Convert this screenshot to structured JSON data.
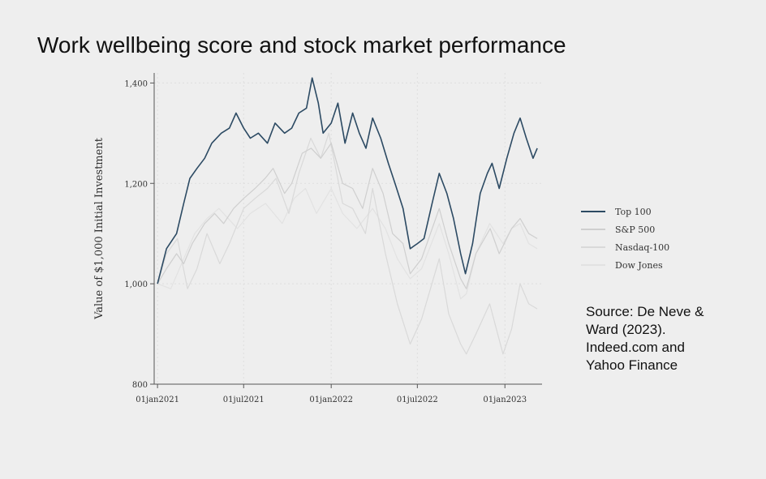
{
  "title": "Work wellbeing score and stock market performance",
  "source": {
    "lines": [
      "Source: De Neve &",
      "Ward (2023).",
      "Indeed.com and",
      "Yahoo Finance"
    ]
  },
  "chart_data": {
    "type": "line",
    "ylabel": "Value of $1,000 Initial Investment",
    "xlabel": "",
    "ylim": [
      800,
      1420
    ],
    "yticks": [
      800,
      1000,
      1200,
      1400
    ],
    "ytick_labels": [
      "800",
      "1,000",
      "1,200",
      "1,400"
    ],
    "xlim": [
      "2020-12-25",
      "2023-03-20"
    ],
    "xticks": [
      "2021-01-01",
      "2021-07-01",
      "2022-01-01",
      "2022-07-01",
      "2023-01-01"
    ],
    "xtick_labels": [
      "01jan2021",
      "01jul2021",
      "01jan2022",
      "01jul2022",
      "01jan2023"
    ],
    "grid": true,
    "legend_position": "right",
    "series": [
      {
        "name": "Top 100",
        "color": "#2c4a63",
        "points": [
          [
            "2021-01-01",
            1000
          ],
          [
            "2021-01-20",
            1070
          ],
          [
            "2021-02-10",
            1100
          ],
          [
            "2021-02-25",
            1160
          ],
          [
            "2021-03-10",
            1210
          ],
          [
            "2021-03-25",
            1230
          ],
          [
            "2021-04-10",
            1250
          ],
          [
            "2021-04-25",
            1280
          ],
          [
            "2021-05-15",
            1300
          ],
          [
            "2021-06-01",
            1310
          ],
          [
            "2021-06-15",
            1340
          ],
          [
            "2021-07-01",
            1310
          ],
          [
            "2021-07-15",
            1290
          ],
          [
            "2021-08-01",
            1300
          ],
          [
            "2021-08-20",
            1280
          ],
          [
            "2021-09-05",
            1320
          ],
          [
            "2021-09-25",
            1300
          ],
          [
            "2021-10-10",
            1310
          ],
          [
            "2021-10-25",
            1340
          ],
          [
            "2021-11-10",
            1350
          ],
          [
            "2021-11-22",
            1410
          ],
          [
            "2021-12-05",
            1360
          ],
          [
            "2021-12-15",
            1300
          ],
          [
            "2022-01-01",
            1320
          ],
          [
            "2022-01-15",
            1360
          ],
          [
            "2022-01-30",
            1280
          ],
          [
            "2022-02-15",
            1340
          ],
          [
            "2022-03-01",
            1300
          ],
          [
            "2022-03-15",
            1270
          ],
          [
            "2022-03-29",
            1330
          ],
          [
            "2022-04-15",
            1290
          ],
          [
            "2022-05-01",
            1240
          ],
          [
            "2022-05-15",
            1200
          ],
          [
            "2022-06-01",
            1150
          ],
          [
            "2022-06-16",
            1070
          ],
          [
            "2022-07-01",
            1080
          ],
          [
            "2022-07-15",
            1090
          ],
          [
            "2022-08-01",
            1160
          ],
          [
            "2022-08-16",
            1220
          ],
          [
            "2022-09-01",
            1180
          ],
          [
            "2022-09-15",
            1130
          ],
          [
            "2022-09-30",
            1060
          ],
          [
            "2022-10-10",
            1020
          ],
          [
            "2022-10-25",
            1080
          ],
          [
            "2022-11-10",
            1180
          ],
          [
            "2022-11-25",
            1220
          ],
          [
            "2022-12-05",
            1240
          ],
          [
            "2022-12-20",
            1190
          ],
          [
            "2023-01-05",
            1250
          ],
          [
            "2023-01-20",
            1300
          ],
          [
            "2023-02-02",
            1330
          ],
          [
            "2023-02-15",
            1290
          ],
          [
            "2023-03-01",
            1250
          ],
          [
            "2023-03-10",
            1270
          ]
        ]
      },
      {
        "name": "S&P 500",
        "color": "#cfcfcf",
        "points": [
          [
            "2021-01-01",
            1000
          ],
          [
            "2021-01-20",
            1030
          ],
          [
            "2021-02-10",
            1060
          ],
          [
            "2021-02-25",
            1040
          ],
          [
            "2021-03-15",
            1080
          ],
          [
            "2021-04-10",
            1120
          ],
          [
            "2021-05-01",
            1140
          ],
          [
            "2021-05-20",
            1120
          ],
          [
            "2021-06-10",
            1150
          ],
          [
            "2021-07-01",
            1170
          ],
          [
            "2021-07-25",
            1190
          ],
          [
            "2021-08-15",
            1210
          ],
          [
            "2021-09-01",
            1230
          ],
          [
            "2021-09-25",
            1180
          ],
          [
            "2021-10-10",
            1200
          ],
          [
            "2021-11-01",
            1260
          ],
          [
            "2021-11-20",
            1270
          ],
          [
            "2021-12-10",
            1250
          ],
          [
            "2022-01-01",
            1280
          ],
          [
            "2022-01-25",
            1200
          ],
          [
            "2022-02-15",
            1190
          ],
          [
            "2022-03-08",
            1150
          ],
          [
            "2022-03-29",
            1230
          ],
          [
            "2022-04-20",
            1180
          ],
          [
            "2022-05-10",
            1100
          ],
          [
            "2022-06-01",
            1080
          ],
          [
            "2022-06-16",
            1020
          ],
          [
            "2022-07-10",
            1050
          ],
          [
            "2022-08-16",
            1150
          ],
          [
            "2022-09-05",
            1080
          ],
          [
            "2022-09-30",
            1010
          ],
          [
            "2022-10-12",
            990
          ],
          [
            "2022-11-01",
            1060
          ],
          [
            "2022-12-01",
            1110
          ],
          [
            "2022-12-20",
            1060
          ],
          [
            "2023-01-15",
            1110
          ],
          [
            "2023-02-02",
            1130
          ],
          [
            "2023-02-20",
            1100
          ],
          [
            "2023-03-10",
            1090
          ]
        ]
      },
      {
        "name": "Nasdaq-100",
        "color": "#d9d9d9",
        "points": [
          [
            "2021-01-01",
            1000
          ],
          [
            "2021-01-20",
            1060
          ],
          [
            "2021-02-12",
            1090
          ],
          [
            "2021-03-05",
            990
          ],
          [
            "2021-03-25",
            1030
          ],
          [
            "2021-04-15",
            1100
          ],
          [
            "2021-05-12",
            1040
          ],
          [
            "2021-06-01",
            1080
          ],
          [
            "2021-07-01",
            1150
          ],
          [
            "2021-07-25",
            1170
          ],
          [
            "2021-08-20",
            1190
          ],
          [
            "2021-09-07",
            1210
          ],
          [
            "2021-10-04",
            1140
          ],
          [
            "2021-10-25",
            1220
          ],
          [
            "2021-11-19",
            1290
          ],
          [
            "2021-12-10",
            1250
          ],
          [
            "2021-12-27",
            1300
          ],
          [
            "2022-01-25",
            1160
          ],
          [
            "2022-02-15",
            1150
          ],
          [
            "2022-03-14",
            1100
          ],
          [
            "2022-03-29",
            1190
          ],
          [
            "2022-04-25",
            1060
          ],
          [
            "2022-05-20",
            960
          ],
          [
            "2022-06-16",
            880
          ],
          [
            "2022-07-10",
            930
          ],
          [
            "2022-08-16",
            1050
          ],
          [
            "2022-09-05",
            940
          ],
          [
            "2022-09-30",
            880
          ],
          [
            "2022-10-12",
            860
          ],
          [
            "2022-11-01",
            900
          ],
          [
            "2022-11-30",
            960
          ],
          [
            "2022-12-28",
            860
          ],
          [
            "2023-01-15",
            910
          ],
          [
            "2023-02-02",
            1000
          ],
          [
            "2023-02-20",
            960
          ],
          [
            "2023-03-10",
            950
          ]
        ]
      },
      {
        "name": "Dow Jones",
        "color": "#e2e2e2",
        "points": [
          [
            "2021-01-01",
            1000
          ],
          [
            "2021-01-29",
            990
          ],
          [
            "2021-02-25",
            1050
          ],
          [
            "2021-03-20",
            1100
          ],
          [
            "2021-04-15",
            1130
          ],
          [
            "2021-05-10",
            1150
          ],
          [
            "2021-06-18",
            1110
          ],
          [
            "2021-07-15",
            1140
          ],
          [
            "2021-08-16",
            1160
          ],
          [
            "2021-09-20",
            1120
          ],
          [
            "2021-10-15",
            1170
          ],
          [
            "2021-11-08",
            1190
          ],
          [
            "2021-12-01",
            1140
          ],
          [
            "2022-01-01",
            1190
          ],
          [
            "2022-01-25",
            1140
          ],
          [
            "2022-02-24",
            1110
          ],
          [
            "2022-03-29",
            1150
          ],
          [
            "2022-04-25",
            1110
          ],
          [
            "2022-05-20",
            1050
          ],
          [
            "2022-06-16",
            1010
          ],
          [
            "2022-07-10",
            1030
          ],
          [
            "2022-08-16",
            1120
          ],
          [
            "2022-09-05",
            1060
          ],
          [
            "2022-09-30",
            970
          ],
          [
            "2022-10-12",
            980
          ],
          [
            "2022-11-01",
            1060
          ],
          [
            "2022-11-30",
            1120
          ],
          [
            "2022-12-28",
            1080
          ],
          [
            "2023-01-15",
            1110
          ],
          [
            "2023-02-02",
            1120
          ],
          [
            "2023-02-20",
            1080
          ],
          [
            "2023-03-10",
            1070
          ]
        ]
      }
    ]
  }
}
